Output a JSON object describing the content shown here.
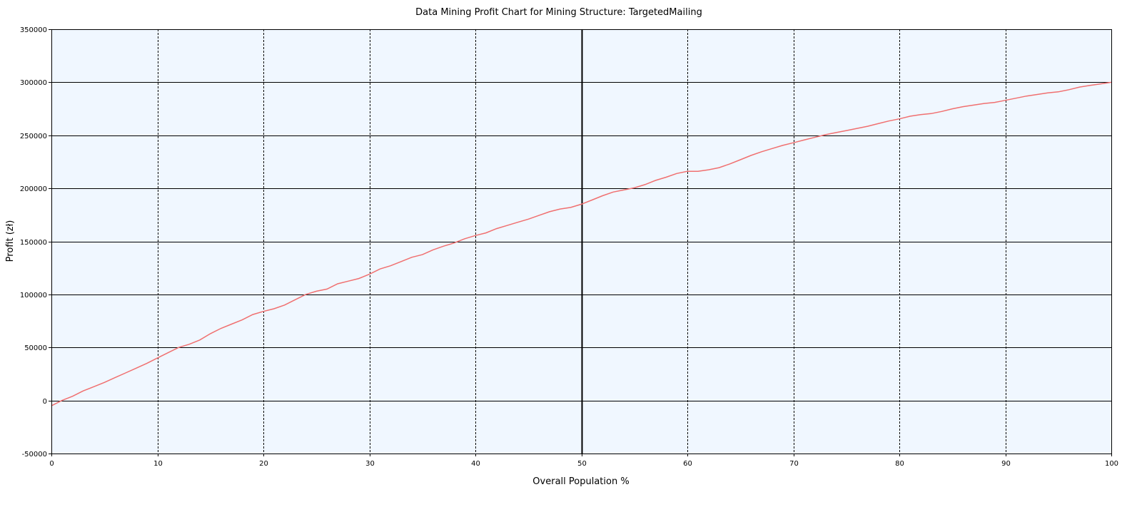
{
  "chart_data": {
    "type": "line",
    "title": "Data Mining Profit Chart for Mining Structure: TargetedMailing",
    "xlabel": "Overall Population %",
    "ylabel": "Profit (zł)",
    "xlim": [
      0,
      100
    ],
    "ylim": [
      -50000,
      350000
    ],
    "xticks": [
      "0",
      "10",
      "20",
      "30",
      "40",
      "50",
      "60",
      "70",
      "80",
      "90",
      "100"
    ],
    "yticks": [
      "-50000",
      "0",
      "50000",
      "100000",
      "150000",
      "200000",
      "250000",
      "300000",
      "350000"
    ],
    "grid": true,
    "marker_x": 50,
    "colors": {
      "plot_background": "#f0f7ff",
      "series": "#f07070",
      "grid": "#000000"
    },
    "series": [
      {
        "name": "",
        "points": [
          [
            0,
            -5000
          ],
          [
            1,
            0
          ],
          [
            2,
            4000
          ],
          [
            3,
            9000
          ],
          [
            4,
            13000
          ],
          [
            5,
            17000
          ],
          [
            6,
            21500
          ],
          [
            7,
            26000
          ],
          [
            8,
            30500
          ],
          [
            9,
            35000
          ],
          [
            10,
            40000
          ],
          [
            11,
            45000
          ],
          [
            12,
            50000
          ],
          [
            13,
            53000
          ],
          [
            14,
            57000
          ],
          [
            15,
            63000
          ],
          [
            16,
            68000
          ],
          [
            17,
            72000
          ],
          [
            18,
            76000
          ],
          [
            19,
            81000
          ],
          [
            20,
            84000
          ],
          [
            21,
            86500
          ],
          [
            22,
            90000
          ],
          [
            23,
            95000
          ],
          [
            24,
            100000
          ],
          [
            25,
            103000
          ],
          [
            26,
            105000
          ],
          [
            27,
            110000
          ],
          [
            28,
            112500
          ],
          [
            29,
            115000
          ],
          [
            30,
            119000
          ],
          [
            31,
            124000
          ],
          [
            32,
            127000
          ],
          [
            33,
            131000
          ],
          [
            34,
            135000
          ],
          [
            35,
            137500
          ],
          [
            36,
            142000
          ],
          [
            37,
            145500
          ],
          [
            38,
            148500
          ],
          [
            39,
            152500
          ],
          [
            40,
            155500
          ],
          [
            41,
            158000
          ],
          [
            42,
            162000
          ],
          [
            43,
            165000
          ],
          [
            44,
            168000
          ],
          [
            45,
            171000
          ],
          [
            46,
            174500
          ],
          [
            47,
            178000
          ],
          [
            48,
            180500
          ],
          [
            49,
            182000
          ],
          [
            50,
            185000
          ],
          [
            51,
            189000
          ],
          [
            52,
            193000
          ],
          [
            53,
            196500
          ],
          [
            54,
            198500
          ],
          [
            55,
            200500
          ],
          [
            56,
            203500
          ],
          [
            57,
            207500
          ],
          [
            58,
            210500
          ],
          [
            59,
            214000
          ],
          [
            60,
            216000
          ],
          [
            61,
            216000
          ],
          [
            62,
            217500
          ],
          [
            63,
            219500
          ],
          [
            64,
            223000
          ],
          [
            65,
            227000
          ],
          [
            66,
            231000
          ],
          [
            67,
            234500
          ],
          [
            68,
            237500
          ],
          [
            69,
            240500
          ],
          [
            70,
            243000
          ],
          [
            71,
            245500
          ],
          [
            72,
            248000
          ],
          [
            73,
            250500
          ],
          [
            74,
            252500
          ],
          [
            75,
            254500
          ],
          [
            76,
            256500
          ],
          [
            77,
            258500
          ],
          [
            78,
            261000
          ],
          [
            79,
            263500
          ],
          [
            80,
            265500
          ],
          [
            81,
            268000
          ],
          [
            82,
            269500
          ],
          [
            83,
            270500
          ],
          [
            84,
            272500
          ],
          [
            85,
            275000
          ],
          [
            86,
            277000
          ],
          [
            87,
            278500
          ],
          [
            88,
            280000
          ],
          [
            89,
            281000
          ],
          [
            90,
            283000
          ],
          [
            91,
            285000
          ],
          [
            92,
            287000
          ],
          [
            93,
            288500
          ],
          [
            94,
            290000
          ],
          [
            95,
            291000
          ],
          [
            96,
            293000
          ],
          [
            97,
            295500
          ],
          [
            98,
            297000
          ],
          [
            99,
            298500
          ],
          [
            100,
            300000
          ]
        ]
      }
    ]
  }
}
